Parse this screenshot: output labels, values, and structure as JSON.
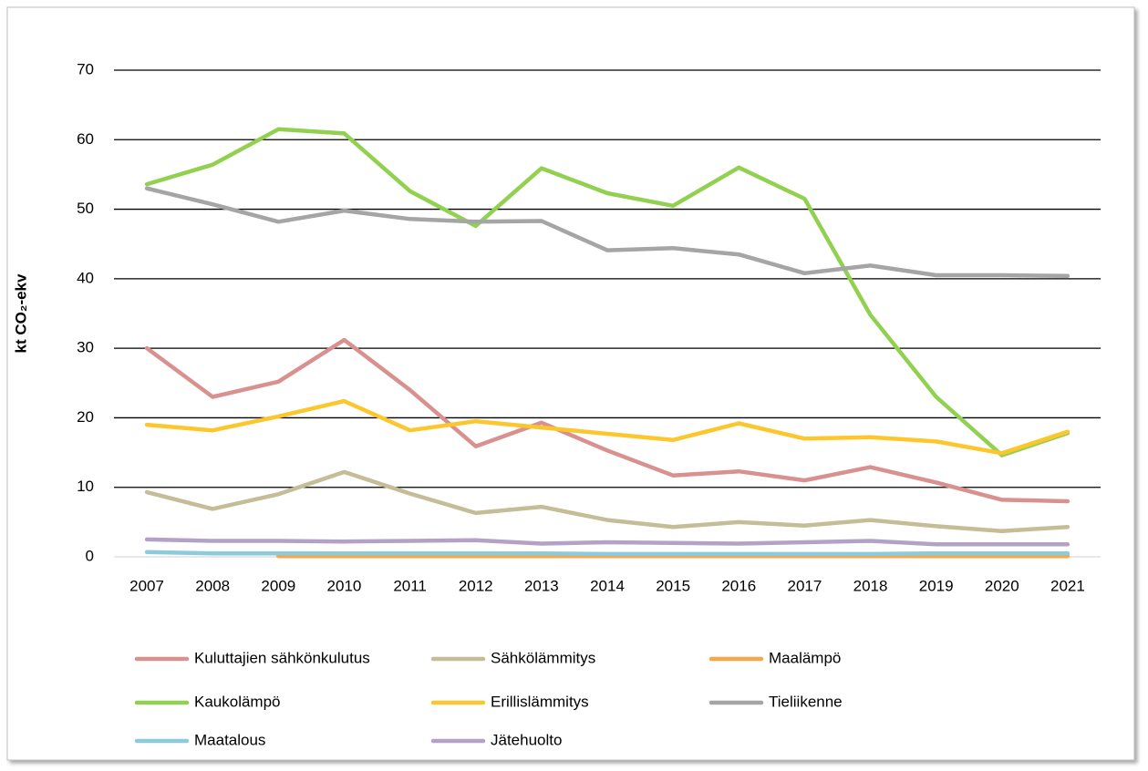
{
  "chart_data": {
    "type": "line",
    "ylabel": "kt CO₂-ekv",
    "categories": [
      "2007",
      "2008",
      "2009",
      "2010",
      "2011",
      "2012",
      "2013",
      "2014",
      "2015",
      "2016",
      "2017",
      "2018",
      "2019",
      "2020",
      "2021"
    ],
    "ylim": [
      0,
      70
    ],
    "yticks": [
      0,
      10,
      20,
      30,
      40,
      50,
      60,
      70
    ],
    "grid": true,
    "series": [
      {
        "name": "Kuluttajien sähkönkulutus",
        "color": "#d9918f",
        "values": [
          30,
          23,
          25.2,
          31.2,
          24,
          15.9,
          19.3,
          15.3,
          11.7,
          12.3,
          11,
          12.9,
          10.7,
          8.2,
          8.0
        ]
      },
      {
        "name": "Sähkölämmitys",
        "color": "#c4bd97",
        "values": [
          9.3,
          6.9,
          9,
          12.2,
          9.1,
          6.3,
          7.2,
          5.3,
          4.3,
          5.0,
          4.5,
          5.3,
          4.4,
          3.7,
          4.3
        ]
      },
      {
        "name": "Maalämpö",
        "color": "#f7a64b",
        "values": [
          null,
          null,
          0.1,
          0.1,
          0.1,
          0.1,
          0.1,
          0.1,
          0.1,
          0.1,
          0.1,
          0.1,
          0.1,
          0.1,
          0.1
        ]
      },
      {
        "name": "Kaukolämpö",
        "color": "#92d050",
        "values": [
          53.6,
          56.4,
          61.5,
          60.9,
          52.6,
          47.6,
          55.9,
          52.3,
          50.5,
          56.0,
          51.5,
          34.8,
          23,
          14.6,
          17.8
        ]
      },
      {
        "name": "Erillislämmitys",
        "color": "#fcc72c",
        "values": [
          19,
          18.2,
          20.2,
          22.4,
          18.2,
          19.5,
          18.6,
          17.7,
          16.8,
          19.2,
          17.0,
          17.2,
          16.6,
          14.9,
          18.0
        ]
      },
      {
        "name": "Tieliikenne",
        "color": "#a5a5a5",
        "values": [
          53,
          50.7,
          48.2,
          49.8,
          48.6,
          48.2,
          48.3,
          44.1,
          44.4,
          43.5,
          40.8,
          41.9,
          40.5,
          40.5,
          40.4
        ]
      },
      {
        "name": "Maatalous",
        "color": "#8ccbd9",
        "values": [
          0.7,
          0.5,
          0.5,
          0.5,
          0.5,
          0.5,
          0.5,
          0.4,
          0.4,
          0.4,
          0.4,
          0.4,
          0.5,
          0.5,
          0.5
        ]
      },
      {
        "name": "Jätehuolto",
        "color": "#b3a2c7",
        "values": [
          2.5,
          2.3,
          2.3,
          2.2,
          2.3,
          2.4,
          1.9,
          2.1,
          2.0,
          1.9,
          2.1,
          2.3,
          1.8,
          1.8,
          1.8
        ]
      }
    ]
  }
}
